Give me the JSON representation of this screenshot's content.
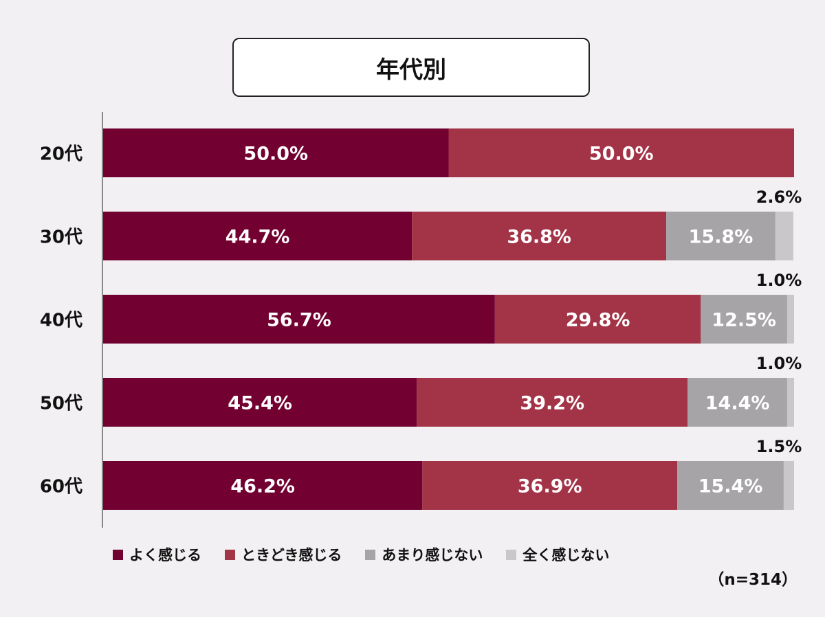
{
  "title": "年代別",
  "note": "（n=314）",
  "colors": [
    "#720030",
    "#a33347",
    "#a6a4a7",
    "#c9c7ca"
  ],
  "chart_data": {
    "type": "bar",
    "orientation": "horizontal",
    "stacked": true,
    "categories": [
      "20代",
      "30代",
      "40代",
      "50代",
      "60代"
    ],
    "series": [
      {
        "name": "よく感じる",
        "values": [
          50.0,
          44.7,
          56.7,
          45.4,
          46.2
        ],
        "labels": [
          "50.0%",
          "44.7%",
          "56.7%",
          "45.4%",
          "46.2%"
        ]
      },
      {
        "name": "ときどき感じる",
        "values": [
          50.0,
          36.8,
          29.8,
          39.2,
          36.9
        ],
        "labels": [
          "50.0%",
          "36.8%",
          "29.8%",
          "39.2%",
          "36.9%"
        ]
      },
      {
        "name": "あまり感じない",
        "values": [
          0,
          15.8,
          12.5,
          14.4,
          15.4
        ],
        "labels": [
          "",
          "15.8%",
          "12.5%",
          "14.4%",
          "15.4%"
        ]
      },
      {
        "name": "全く感じない",
        "values": [
          0,
          2.6,
          1.0,
          1.0,
          1.5
        ],
        "labels": [
          "",
          "2.6%",
          "1.0%",
          "1.0%",
          "1.5%"
        ]
      }
    ],
    "xlim": [
      0,
      100
    ],
    "legend": "bottom",
    "grid": false
  }
}
